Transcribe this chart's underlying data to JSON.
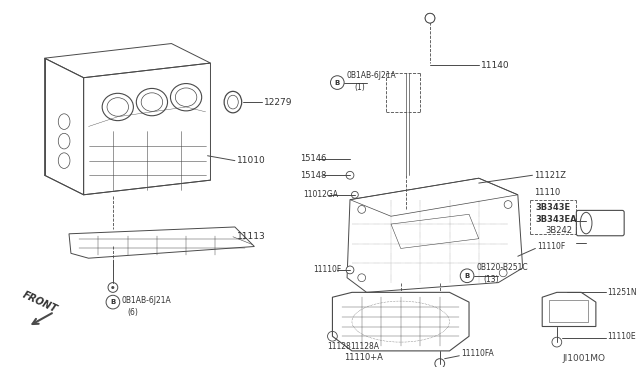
{
  "diagram_id": "JI1001MO",
  "background_color": "#ffffff",
  "line_color": "#4a4a4a",
  "text_color": "#333333",
  "figsize": [
    6.4,
    3.72
  ],
  "dpi": 100,
  "left_parts": {
    "block_label": "11010",
    "seal_label": "12279",
    "skid_label": "11113",
    "bolt_label": "0B1AB-6J21A",
    "bolt_qty": "(6)"
  },
  "right_parts": {
    "dipstick_label": "11140",
    "tube_label1": "0B1AB-6J21A",
    "tube_qty": "(1)",
    "label_15146": "15146",
    "label_15148": "15148",
    "label_11012GA": "11012GA",
    "label_11121Z": "11121Z",
    "label_11110": "11110",
    "label_3B343E": "3B343E",
    "label_3B343EA": "3B343EA",
    "label_3B242": "3B242",
    "label_11110F_r": "11110F",
    "label_11110F_l": "11110F",
    "label_bolt2": "0B120-B251C",
    "label_bolt2_qty": "(13)",
    "label_11128": "11128",
    "label_11128A": "11128A",
    "label_11110pA": "11110+A",
    "label_11110FA": "11110FA",
    "label_11251N": "11251N",
    "label_11110E": "11110E"
  }
}
